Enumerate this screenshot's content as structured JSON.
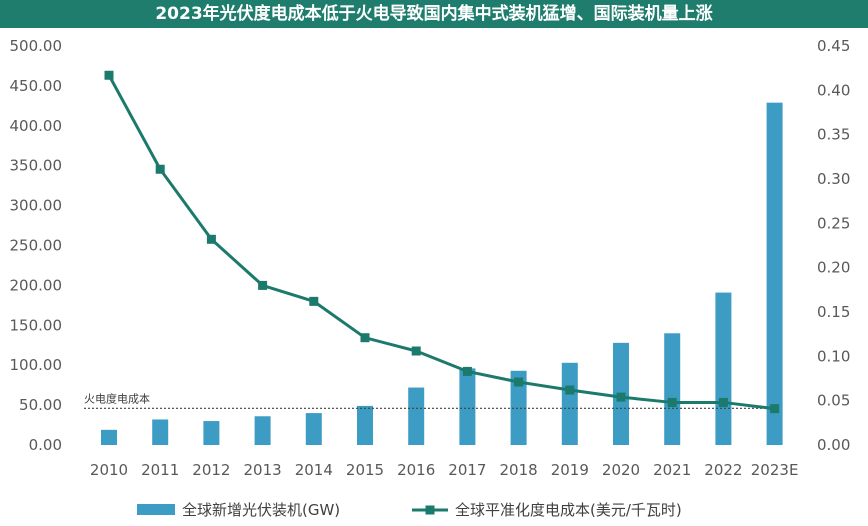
{
  "chart_data": {
    "type": "bar+line",
    "title": "2023年光伏度电成本低于火电导致国内集中式装机猛增、国际装机量上涨",
    "categories": [
      "2010",
      "2011",
      "2012",
      "2013",
      "2014",
      "2015",
      "2016",
      "2017",
      "2018",
      "2019",
      "2020",
      "2021",
      "2022",
      "2023E"
    ],
    "series": [
      {
        "name": "全球新增光伏装机(GW)",
        "type": "bar",
        "axis": "left",
        "color": "#3d9cc3",
        "values": [
          19,
          32,
          30,
          36,
          40,
          49,
          72,
          96,
          93,
          103,
          128,
          140,
          191,
          429
        ]
      },
      {
        "name": "全球平准化度电成本(美元/千瓦时)",
        "type": "line",
        "axis": "right",
        "color": "#1b7a6b",
        "values": [
          0.417,
          0.311,
          0.232,
          0.18,
          0.162,
          0.121,
          0.106,
          0.083,
          0.071,
          0.062,
          0.054,
          0.048,
          0.048,
          0.041
        ]
      }
    ],
    "y_left": {
      "range": [
        0,
        500
      ],
      "ticks": [
        "0.00",
        "50.00",
        "100.00",
        "150.00",
        "200.00",
        "250.00",
        "300.00",
        "350.00",
        "400.00",
        "450.00",
        "500.00"
      ]
    },
    "y_right": {
      "range": [
        0,
        0.45
      ],
      "ticks": [
        "0.00",
        "0.05",
        "0.10",
        "0.15",
        "0.20",
        "0.25",
        "0.30",
        "0.35",
        "0.40",
        "0.45"
      ]
    },
    "reference_line": {
      "label": "火电度电成本",
      "value": 46,
      "axis": "left",
      "style": "dotted"
    },
    "grid": false,
    "legend_position": "bottom"
  }
}
